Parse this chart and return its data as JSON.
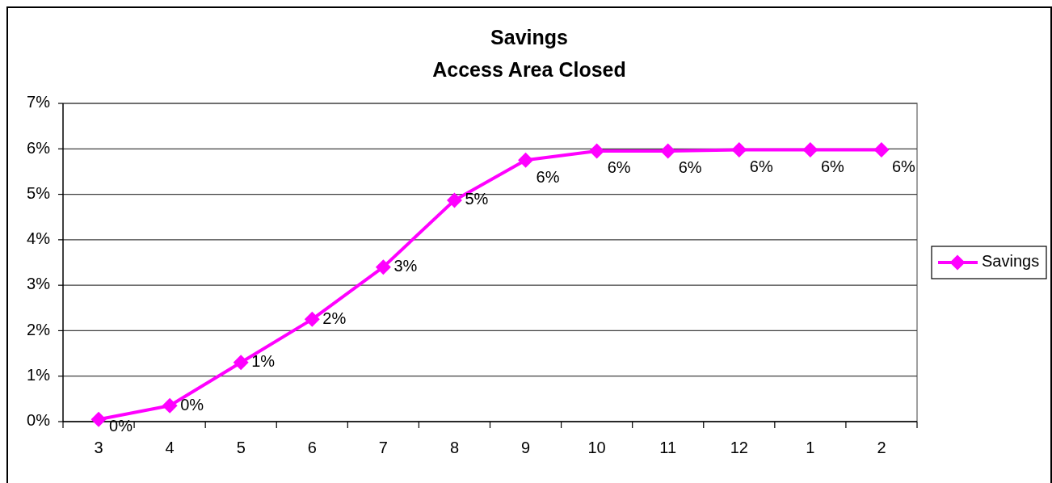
{
  "chart_data": {
    "type": "line",
    "title": "Savings",
    "subtitle": "Access Area Closed",
    "categories": [
      "3",
      "4",
      "5",
      "6",
      "7",
      "8",
      "9",
      "10",
      "11",
      "12",
      "1",
      "2"
    ],
    "series": [
      {
        "name": "Savings",
        "color": "#ff00ff",
        "values": [
          0.05,
          0.35,
          1.3,
          2.25,
          3.4,
          4.87,
          5.75,
          5.95,
          5.95,
          5.98,
          5.98,
          5.98
        ],
        "value_labels": [
          "0%",
          "0%",
          "1%",
          "2%",
          "3%",
          "5%",
          "6%",
          "6%",
          "6%",
          "6%",
          "6%",
          "6%"
        ]
      }
    ],
    "ylim": [
      0,
      7
    ],
    "yticks": [
      {
        "value": 0,
        "label": "0%"
      },
      {
        "value": 1,
        "label": "1%"
      },
      {
        "value": 2,
        "label": "2%"
      },
      {
        "value": 3,
        "label": "3%"
      },
      {
        "value": 4,
        "label": "4%"
      },
      {
        "value": 5,
        "label": "5%"
      },
      {
        "value": 6,
        "label": "6%"
      },
      {
        "value": 7,
        "label": "7%"
      }
    ],
    "grid": "y",
    "legend": "right",
    "marker": "diamond",
    "line_style": "solid"
  }
}
